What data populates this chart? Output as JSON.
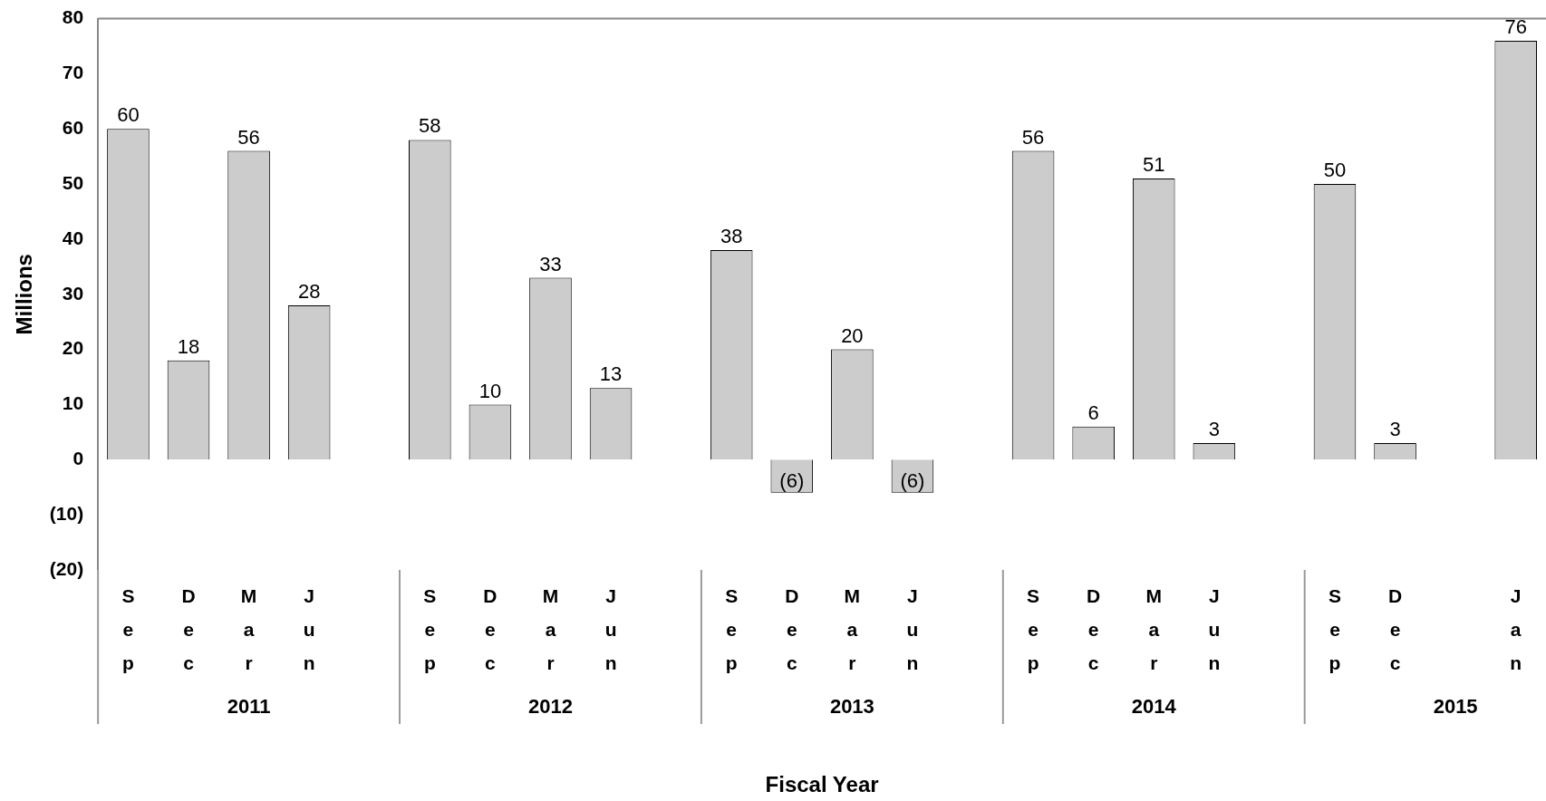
{
  "chart_data": {
    "type": "bar",
    "xlabel": "Fiscal Year",
    "ylabel": "Millions",
    "categories": [
      "Sep",
      "Dec",
      "Mar",
      "Jun",
      null,
      "Sep",
      "Dec",
      "Mar",
      "Jun",
      null,
      "Sep",
      "Dec",
      "Mar",
      "Jun",
      null,
      "Sep",
      "Dec",
      "Mar",
      "Jun",
      null,
      "Sep",
      "Dec",
      null,
      "Jan"
    ],
    "values": [
      60,
      18,
      56,
      28,
      null,
      58,
      10,
      33,
      13,
      null,
      38,
      -6,
      20,
      -6,
      null,
      56,
      6,
      51,
      3,
      null,
      50,
      3,
      null,
      76
    ],
    "value_labels": [
      "60",
      "18",
      "56",
      "28",
      null,
      "58",
      "10",
      "33",
      "13",
      null,
      "38",
      "(6)",
      "20",
      "(6)",
      null,
      "56",
      "6",
      "51",
      "3",
      null,
      "50",
      "3",
      null,
      "76"
    ],
    "color": "#cccccc",
    "ylim": [
      -20,
      80
    ],
    "yticks": [
      {
        "value": -20,
        "label": "(20)"
      },
      {
        "value": -10,
        "label": "(10)"
      },
      0,
      10,
      20,
      30,
      40,
      50,
      60,
      70,
      80
    ],
    "annotations": [
      "2011",
      "2012",
      "2013",
      "2014",
      "2015"
    ],
    "grid": false,
    "legend": false
  }
}
